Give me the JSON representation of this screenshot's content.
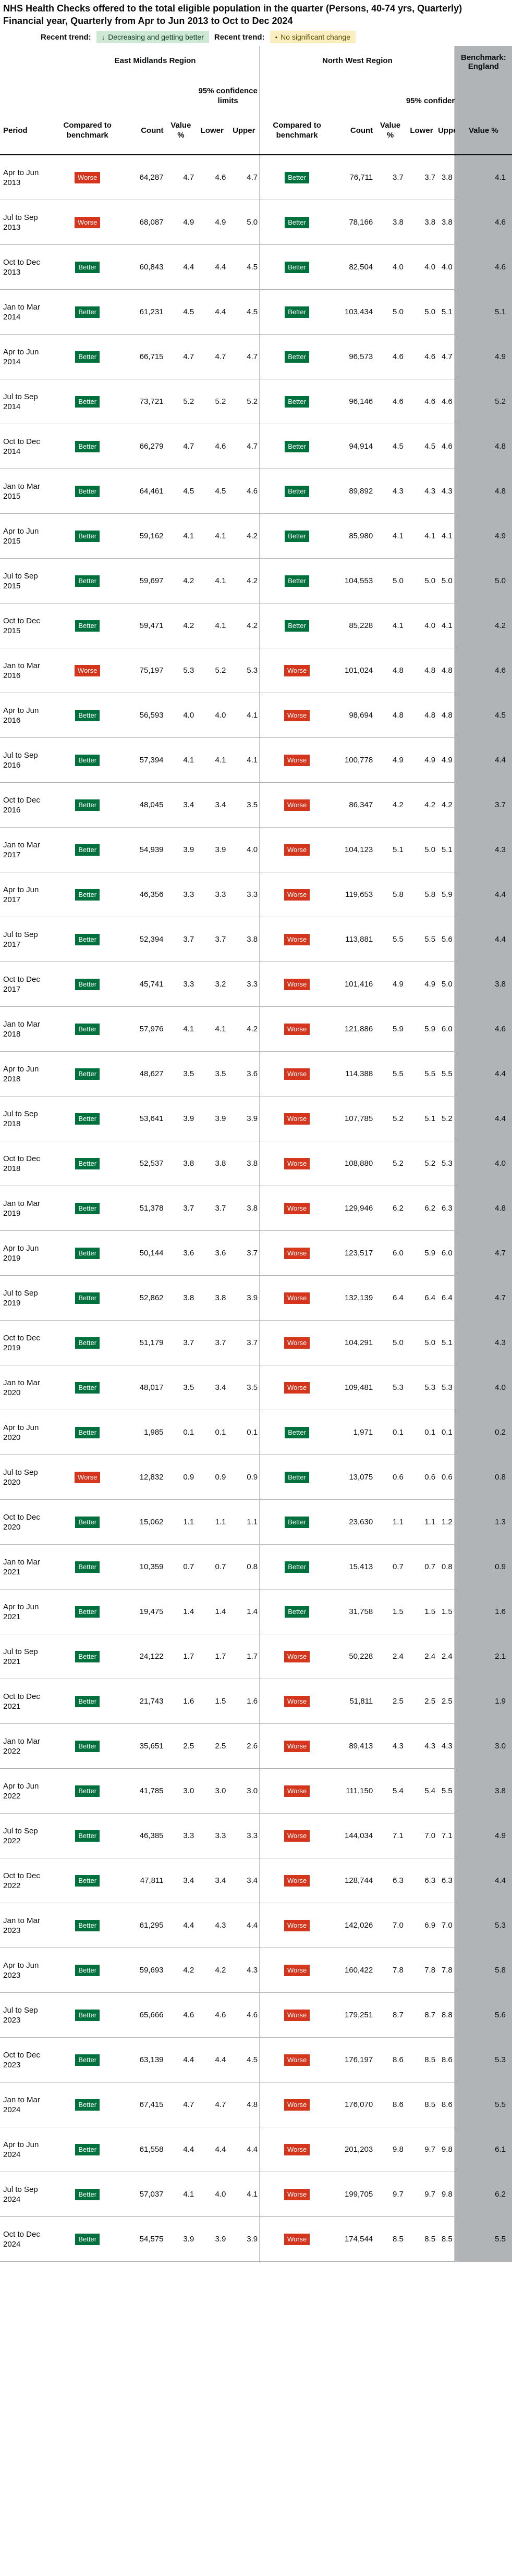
{
  "title": "NHS Health Checks offered to the total eligible population in the quarter (Persons, 40-74 yrs, Quarterly) Financial year, Quarterly from Apr to Jun 2013 to Oct to Dec 2024",
  "legend": {
    "label1": "Recent trend:",
    "chip1": "Decreasing and getting better",
    "chip1_icon": "down-arrow-icon",
    "label2": "Recent trend:",
    "chip2": "No significant change",
    "chip2_icon": "dot-icon",
    "colors": {
      "better": "#00703c",
      "worse": "#d4351c",
      "chip_green": "#cfe8d6",
      "chip_yellow": "#fbeec0",
      "benchmark": "#b1b4b6"
    }
  },
  "header": {
    "region1": "East Midlands Region",
    "region2": "North West Region",
    "benchmark": "Benchmark: England",
    "ci_label": "95% confidence limits",
    "col_period": "Period",
    "col_compared": "Compared to benchmark",
    "col_count": "Count",
    "col_value": "Value %",
    "col_lower": "Lower",
    "col_upper": "Upper",
    "col_bench_value": "Value %"
  },
  "rows": [
    {
      "period": "Apr to Jun 2013",
      "em": {
        "cmp": "Worse",
        "count": "64,287",
        "value": "4.7",
        "lower": "4.6",
        "upper": "4.7"
      },
      "nw": {
        "cmp": "Better",
        "count": "76,711",
        "value": "3.7",
        "lower": "3.7",
        "upper": "3.8"
      },
      "bench": "4.1"
    },
    {
      "period": "Jul to Sep 2013",
      "em": {
        "cmp": "Worse",
        "count": "68,087",
        "value": "4.9",
        "lower": "4.9",
        "upper": "5.0"
      },
      "nw": {
        "cmp": "Better",
        "count": "78,166",
        "value": "3.8",
        "lower": "3.8",
        "upper": "3.8"
      },
      "bench": "4.6"
    },
    {
      "period": "Oct to Dec 2013",
      "em": {
        "cmp": "Better",
        "count": "60,843",
        "value": "4.4",
        "lower": "4.4",
        "upper": "4.5"
      },
      "nw": {
        "cmp": "Better",
        "count": "82,504",
        "value": "4.0",
        "lower": "4.0",
        "upper": "4.0"
      },
      "bench": "4.6"
    },
    {
      "period": "Jan to Mar 2014",
      "em": {
        "cmp": "Better",
        "count": "61,231",
        "value": "4.5",
        "lower": "4.4",
        "upper": "4.5"
      },
      "nw": {
        "cmp": "Better",
        "count": "103,434",
        "value": "5.0",
        "lower": "5.0",
        "upper": "5.1"
      },
      "bench": "5.1"
    },
    {
      "period": "Apr to Jun 2014",
      "em": {
        "cmp": "Better",
        "count": "66,715",
        "value": "4.7",
        "lower": "4.7",
        "upper": "4.7"
      },
      "nw": {
        "cmp": "Better",
        "count": "96,573",
        "value": "4.6",
        "lower": "4.6",
        "upper": "4.7"
      },
      "bench": "4.9"
    },
    {
      "period": "Jul to Sep 2014",
      "em": {
        "cmp": "Better",
        "count": "73,721",
        "value": "5.2",
        "lower": "5.2",
        "upper": "5.2"
      },
      "nw": {
        "cmp": "Better",
        "count": "96,146",
        "value": "4.6",
        "lower": "4.6",
        "upper": "4.6"
      },
      "bench": "5.2"
    },
    {
      "period": "Oct to Dec 2014",
      "em": {
        "cmp": "Better",
        "count": "66,279",
        "value": "4.7",
        "lower": "4.6",
        "upper": "4.7"
      },
      "nw": {
        "cmp": "Better",
        "count": "94,914",
        "value": "4.5",
        "lower": "4.5",
        "upper": "4.6"
      },
      "bench": "4.8"
    },
    {
      "period": "Jan to Mar 2015",
      "em": {
        "cmp": "Better",
        "count": "64,461",
        "value": "4.5",
        "lower": "4.5",
        "upper": "4.6"
      },
      "nw": {
        "cmp": "Better",
        "count": "89,892",
        "value": "4.3",
        "lower": "4.3",
        "upper": "4.3"
      },
      "bench": "4.8"
    },
    {
      "period": "Apr to Jun 2015",
      "em": {
        "cmp": "Better",
        "count": "59,162",
        "value": "4.1",
        "lower": "4.1",
        "upper": "4.2"
      },
      "nw": {
        "cmp": "Better",
        "count": "85,980",
        "value": "4.1",
        "lower": "4.1",
        "upper": "4.1"
      },
      "bench": "4.9"
    },
    {
      "period": "Jul to Sep 2015",
      "em": {
        "cmp": "Better",
        "count": "59,697",
        "value": "4.2",
        "lower": "4.1",
        "upper": "4.2"
      },
      "nw": {
        "cmp": "Better",
        "count": "104,553",
        "value": "5.0",
        "lower": "5.0",
        "upper": "5.0"
      },
      "bench": "5.0"
    },
    {
      "period": "Oct to Dec 2015",
      "em": {
        "cmp": "Better",
        "count": "59,471",
        "value": "4.2",
        "lower": "4.1",
        "upper": "4.2"
      },
      "nw": {
        "cmp": "Better",
        "count": "85,228",
        "value": "4.1",
        "lower": "4.0",
        "upper": "4.1"
      },
      "bench": "4.2"
    },
    {
      "period": "Jan to Mar 2016",
      "em": {
        "cmp": "Worse",
        "count": "75,197",
        "value": "5.3",
        "lower": "5.2",
        "upper": "5.3"
      },
      "nw": {
        "cmp": "Worse",
        "count": "101,024",
        "value": "4.8",
        "lower": "4.8",
        "upper": "4.8"
      },
      "bench": "4.6"
    },
    {
      "period": "Apr to Jun 2016",
      "em": {
        "cmp": "Better",
        "count": "56,593",
        "value": "4.0",
        "lower": "4.0",
        "upper": "4.1"
      },
      "nw": {
        "cmp": "Worse",
        "count": "98,694",
        "value": "4.8",
        "lower": "4.8",
        "upper": "4.8"
      },
      "bench": "4.5"
    },
    {
      "period": "Jul to Sep 2016",
      "em": {
        "cmp": "Better",
        "count": "57,394",
        "value": "4.1",
        "lower": "4.1",
        "upper": "4.1"
      },
      "nw": {
        "cmp": "Worse",
        "count": "100,778",
        "value": "4.9",
        "lower": "4.9",
        "upper": "4.9"
      },
      "bench": "4.4"
    },
    {
      "period": "Oct to Dec 2016",
      "em": {
        "cmp": "Better",
        "count": "48,045",
        "value": "3.4",
        "lower": "3.4",
        "upper": "3.5"
      },
      "nw": {
        "cmp": "Worse",
        "count": "86,347",
        "value": "4.2",
        "lower": "4.2",
        "upper": "4.2"
      },
      "bench": "3.7"
    },
    {
      "period": "Jan to Mar 2017",
      "em": {
        "cmp": "Better",
        "count": "54,939",
        "value": "3.9",
        "lower": "3.9",
        "upper": "4.0"
      },
      "nw": {
        "cmp": "Worse",
        "count": "104,123",
        "value": "5.1",
        "lower": "5.0",
        "upper": "5.1"
      },
      "bench": "4.3"
    },
    {
      "period": "Apr to Jun 2017",
      "em": {
        "cmp": "Better",
        "count": "46,356",
        "value": "3.3",
        "lower": "3.3",
        "upper": "3.3"
      },
      "nw": {
        "cmp": "Worse",
        "count": "119,653",
        "value": "5.8",
        "lower": "5.8",
        "upper": "5.9"
      },
      "bench": "4.4"
    },
    {
      "period": "Jul to Sep 2017",
      "em": {
        "cmp": "Better",
        "count": "52,394",
        "value": "3.7",
        "lower": "3.7",
        "upper": "3.8"
      },
      "nw": {
        "cmp": "Worse",
        "count": "113,881",
        "value": "5.5",
        "lower": "5.5",
        "upper": "5.6"
      },
      "bench": "4.4"
    },
    {
      "period": "Oct to Dec 2017",
      "em": {
        "cmp": "Better",
        "count": "45,741",
        "value": "3.3",
        "lower": "3.2",
        "upper": "3.3"
      },
      "nw": {
        "cmp": "Worse",
        "count": "101,416",
        "value": "4.9",
        "lower": "4.9",
        "upper": "5.0"
      },
      "bench": "3.8"
    },
    {
      "period": "Jan to Mar 2018",
      "em": {
        "cmp": "Better",
        "count": "57,976",
        "value": "4.1",
        "lower": "4.1",
        "upper": "4.2"
      },
      "nw": {
        "cmp": "Worse",
        "count": "121,886",
        "value": "5.9",
        "lower": "5.9",
        "upper": "6.0"
      },
      "bench": "4.6"
    },
    {
      "period": "Apr to Jun 2018",
      "em": {
        "cmp": "Better",
        "count": "48,627",
        "value": "3.5",
        "lower": "3.5",
        "upper": "3.6"
      },
      "nw": {
        "cmp": "Worse",
        "count": "114,388",
        "value": "5.5",
        "lower": "5.5",
        "upper": "5.5"
      },
      "bench": "4.4"
    },
    {
      "period": "Jul to Sep 2018",
      "em": {
        "cmp": "Better",
        "count": "53,641",
        "value": "3.9",
        "lower": "3.9",
        "upper": "3.9"
      },
      "nw": {
        "cmp": "Worse",
        "count": "107,785",
        "value": "5.2",
        "lower": "5.1",
        "upper": "5.2"
      },
      "bench": "4.4"
    },
    {
      "period": "Oct to Dec 2018",
      "em": {
        "cmp": "Better",
        "count": "52,537",
        "value": "3.8",
        "lower": "3.8",
        "upper": "3.8"
      },
      "nw": {
        "cmp": "Worse",
        "count": "108,880",
        "value": "5.2",
        "lower": "5.2",
        "upper": "5.3"
      },
      "bench": "4.0"
    },
    {
      "period": "Jan to Mar 2019",
      "em": {
        "cmp": "Better",
        "count": "51,378",
        "value": "3.7",
        "lower": "3.7",
        "upper": "3.8"
      },
      "nw": {
        "cmp": "Worse",
        "count": "129,946",
        "value": "6.2",
        "lower": "6.2",
        "upper": "6.3"
      },
      "bench": "4.8"
    },
    {
      "period": "Apr to Jun 2019",
      "em": {
        "cmp": "Better",
        "count": "50,144",
        "value": "3.6",
        "lower": "3.6",
        "upper": "3.7"
      },
      "nw": {
        "cmp": "Worse",
        "count": "123,517",
        "value": "6.0",
        "lower": "5.9",
        "upper": "6.0"
      },
      "bench": "4.7"
    },
    {
      "period": "Jul to Sep 2019",
      "em": {
        "cmp": "Better",
        "count": "52,862",
        "value": "3.8",
        "lower": "3.8",
        "upper": "3.9"
      },
      "nw": {
        "cmp": "Worse",
        "count": "132,139",
        "value": "6.4",
        "lower": "6.4",
        "upper": "6.4"
      },
      "bench": "4.7"
    },
    {
      "period": "Oct to Dec 2019",
      "em": {
        "cmp": "Better",
        "count": "51,179",
        "value": "3.7",
        "lower": "3.7",
        "upper": "3.7"
      },
      "nw": {
        "cmp": "Worse",
        "count": "104,291",
        "value": "5.0",
        "lower": "5.0",
        "upper": "5.1"
      },
      "bench": "4.3"
    },
    {
      "period": "Jan to Mar 2020",
      "em": {
        "cmp": "Better",
        "count": "48,017",
        "value": "3.5",
        "lower": "3.4",
        "upper": "3.5"
      },
      "nw": {
        "cmp": "Worse",
        "count": "109,481",
        "value": "5.3",
        "lower": "5.3",
        "upper": "5.3"
      },
      "bench": "4.0"
    },
    {
      "period": "Apr to Jun 2020",
      "em": {
        "cmp": "Better",
        "count": "1,985",
        "value": "0.1",
        "lower": "0.1",
        "upper": "0.1"
      },
      "nw": {
        "cmp": "Better",
        "count": "1,971",
        "value": "0.1",
        "lower": "0.1",
        "upper": "0.1"
      },
      "bench": "0.2"
    },
    {
      "period": "Jul to Sep 2020",
      "em": {
        "cmp": "Worse",
        "count": "12,832",
        "value": "0.9",
        "lower": "0.9",
        "upper": "0.9"
      },
      "nw": {
        "cmp": "Better",
        "count": "13,075",
        "value": "0.6",
        "lower": "0.6",
        "upper": "0.6"
      },
      "bench": "0.8"
    },
    {
      "period": "Oct to Dec 2020",
      "em": {
        "cmp": "Better",
        "count": "15,062",
        "value": "1.1",
        "lower": "1.1",
        "upper": "1.1"
      },
      "nw": {
        "cmp": "Better",
        "count": "23,630",
        "value": "1.1",
        "lower": "1.1",
        "upper": "1.2"
      },
      "bench": "1.3"
    },
    {
      "period": "Jan to Mar 2021",
      "em": {
        "cmp": "Better",
        "count": "10,359",
        "value": "0.7",
        "lower": "0.7",
        "upper": "0.8"
      },
      "nw": {
        "cmp": "Better",
        "count": "15,413",
        "value": "0.7",
        "lower": "0.7",
        "upper": "0.8"
      },
      "bench": "0.9"
    },
    {
      "period": "Apr to Jun 2021",
      "em": {
        "cmp": "Better",
        "count": "19,475",
        "value": "1.4",
        "lower": "1.4",
        "upper": "1.4"
      },
      "nw": {
        "cmp": "Better",
        "count": "31,758",
        "value": "1.5",
        "lower": "1.5",
        "upper": "1.5"
      },
      "bench": "1.6"
    },
    {
      "period": "Jul to Sep 2021",
      "em": {
        "cmp": "Better",
        "count": "24,122",
        "value": "1.7",
        "lower": "1.7",
        "upper": "1.7"
      },
      "nw": {
        "cmp": "Worse",
        "count": "50,228",
        "value": "2.4",
        "lower": "2.4",
        "upper": "2.4"
      },
      "bench": "2.1"
    },
    {
      "period": "Oct to Dec 2021",
      "em": {
        "cmp": "Better",
        "count": "21,743",
        "value": "1.6",
        "lower": "1.5",
        "upper": "1.6"
      },
      "nw": {
        "cmp": "Worse",
        "count": "51,811",
        "value": "2.5",
        "lower": "2.5",
        "upper": "2.5"
      },
      "bench": "1.9"
    },
    {
      "period": "Jan to Mar 2022",
      "em": {
        "cmp": "Better",
        "count": "35,651",
        "value": "2.5",
        "lower": "2.5",
        "upper": "2.6"
      },
      "nw": {
        "cmp": "Worse",
        "count": "89,413",
        "value": "4.3",
        "lower": "4.3",
        "upper": "4.3"
      },
      "bench": "3.0"
    },
    {
      "period": "Apr to Jun 2022",
      "em": {
        "cmp": "Better",
        "count": "41,785",
        "value": "3.0",
        "lower": "3.0",
        "upper": "3.0"
      },
      "nw": {
        "cmp": "Worse",
        "count": "111,150",
        "value": "5.4",
        "lower": "5.4",
        "upper": "5.5"
      },
      "bench": "3.8"
    },
    {
      "period": "Jul to Sep 2022",
      "em": {
        "cmp": "Better",
        "count": "46,385",
        "value": "3.3",
        "lower": "3.3",
        "upper": "3.3"
      },
      "nw": {
        "cmp": "Worse",
        "count": "144,034",
        "value": "7.1",
        "lower": "7.0",
        "upper": "7.1"
      },
      "bench": "4.9"
    },
    {
      "period": "Oct to Dec 2022",
      "em": {
        "cmp": "Better",
        "count": "47,811",
        "value": "3.4",
        "lower": "3.4",
        "upper": "3.4"
      },
      "nw": {
        "cmp": "Worse",
        "count": "128,744",
        "value": "6.3",
        "lower": "6.3",
        "upper": "6.3"
      },
      "bench": "4.4"
    },
    {
      "period": "Jan to Mar 2023",
      "em": {
        "cmp": "Better",
        "count": "61,295",
        "value": "4.4",
        "lower": "4.3",
        "upper": "4.4"
      },
      "nw": {
        "cmp": "Worse",
        "count": "142,026",
        "value": "7.0",
        "lower": "6.9",
        "upper": "7.0"
      },
      "bench": "5.3"
    },
    {
      "period": "Apr to Jun 2023",
      "em": {
        "cmp": "Better",
        "count": "59,693",
        "value": "4.2",
        "lower": "4.2",
        "upper": "4.3"
      },
      "nw": {
        "cmp": "Worse",
        "count": "160,422",
        "value": "7.8",
        "lower": "7.8",
        "upper": "7.8"
      },
      "bench": "5.8"
    },
    {
      "period": "Jul to Sep 2023",
      "em": {
        "cmp": "Better",
        "count": "65,666",
        "value": "4.6",
        "lower": "4.6",
        "upper": "4.6"
      },
      "nw": {
        "cmp": "Worse",
        "count": "179,251",
        "value": "8.7",
        "lower": "8.7",
        "upper": "8.8"
      },
      "bench": "5.6"
    },
    {
      "period": "Oct to Dec 2023",
      "em": {
        "cmp": "Better",
        "count": "63,139",
        "value": "4.4",
        "lower": "4.4",
        "upper": "4.5"
      },
      "nw": {
        "cmp": "Worse",
        "count": "176,197",
        "value": "8.6",
        "lower": "8.5",
        "upper": "8.6"
      },
      "bench": "5.3"
    },
    {
      "period": "Jan to Mar 2024",
      "em": {
        "cmp": "Better",
        "count": "67,415",
        "value": "4.7",
        "lower": "4.7",
        "upper": "4.8"
      },
      "nw": {
        "cmp": "Worse",
        "count": "176,070",
        "value": "8.6",
        "lower": "8.5",
        "upper": "8.6"
      },
      "bench": "5.5"
    },
    {
      "period": "Apr to Jun 2024",
      "em": {
        "cmp": "Better",
        "count": "61,558",
        "value": "4.4",
        "lower": "4.4",
        "upper": "4.4"
      },
      "nw": {
        "cmp": "Worse",
        "count": "201,203",
        "value": "9.8",
        "lower": "9.7",
        "upper": "9.8"
      },
      "bench": "6.1"
    },
    {
      "period": "Jul to Sep 2024",
      "em": {
        "cmp": "Better",
        "count": "57,037",
        "value": "4.1",
        "lower": "4.0",
        "upper": "4.1"
      },
      "nw": {
        "cmp": "Worse",
        "count": "199,705",
        "value": "9.7",
        "lower": "9.7",
        "upper": "9.8"
      },
      "bench": "6.2"
    },
    {
      "period": "Oct to Dec 2024",
      "em": {
        "cmp": "Better",
        "count": "54,575",
        "value": "3.9",
        "lower": "3.9",
        "upper": "3.9"
      },
      "nw": {
        "cmp": "Worse",
        "count": "174,544",
        "value": "8.5",
        "lower": "8.5",
        "upper": "8.5"
      },
      "bench": "5.5"
    }
  ]
}
